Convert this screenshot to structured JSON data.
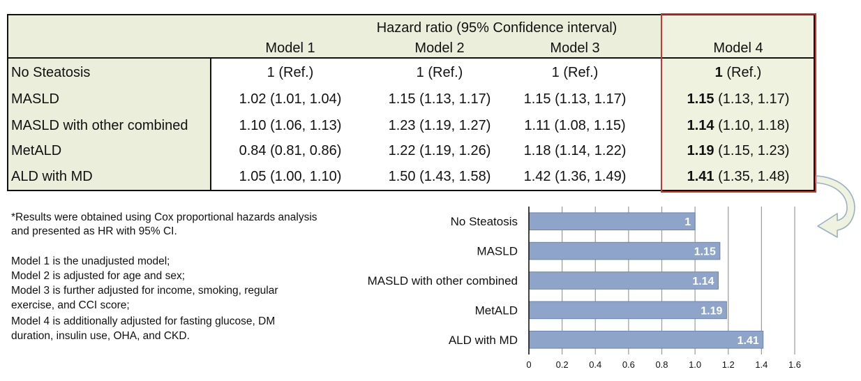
{
  "table": {
    "header_title": "Hazard ratio (95% Confidence interval)",
    "columns": [
      "Model 1",
      "Model 2",
      "Model 3",
      "Model 4"
    ],
    "rows": [
      {
        "label": "No Steatosis",
        "m1": "1 (Ref.)",
        "m2": "1 (Ref.)",
        "m3": "1 (Ref.)",
        "m4_bold": "1",
        "m4_ci": " (Ref.)"
      },
      {
        "label": "MASLD",
        "m1": "1.02 (1.01, 1.04)",
        "m2": "1.15 (1.13, 1.17)",
        "m3": "1.15 (1.13, 1.17)",
        "m4_bold": "1.15",
        "m4_ci": " (1.13, 1.17)"
      },
      {
        "label": "MASLD with other combined",
        "m1": "1.10 (1.06, 1.13)",
        "m2": "1.23 (1.19, 1.27)",
        "m3": "1.11 (1.08, 1.15)",
        "m4_bold": "1.14",
        "m4_ci": " (1.10, 1.18)"
      },
      {
        "label": "MetALD",
        "m1": "0.84 (0.81, 0.86)",
        "m2": "1.22 (1.19, 1.26)",
        "m3": "1.18 (1.14, 1.22)",
        "m4_bold": "1.19",
        "m4_ci": " (1.15, 1.23)"
      },
      {
        "label": "ALD with MD",
        "m1": "1.05 (1.00, 1.10)",
        "m2": "1.50 (1.43, 1.58)",
        "m3": "1.42 (1.36, 1.49)",
        "m4_bold": "1.41",
        "m4_ci": " (1.35, 1.48)"
      }
    ],
    "highlight_color": "#d0342c"
  },
  "notes": {
    "line1": "*Results were obtained using Cox proportional hazards analysis",
    "line2": "and presented as HR with 95% CI.",
    "model1": "Model 1 is the unadjusted model;",
    "model2": "Model 2 is adjusted for age and sex;",
    "model3a": "Model 3 is further adjusted for income, smoking, regular",
    "model3b": "exercise, and CCI score;",
    "model4a": "Model 4 is additionally adjusted for fasting glucose, DM",
    "model4b": "duration, insulin use, OHA, and CKD."
  },
  "chart_data": {
    "type": "bar",
    "orientation": "horizontal",
    "categories": [
      "No Steatosis",
      "MASLD",
      "MASLD with other combined",
      "MetALD",
      "ALD with MD"
    ],
    "values": [
      1,
      1.15,
      1.14,
      1.19,
      1.41
    ],
    "value_labels": [
      "1",
      "1.15",
      "1.14",
      "1.19",
      "1.41"
    ],
    "xlim": [
      0,
      1.6
    ],
    "xticks": [
      "0",
      "0.2",
      "0.4",
      "0.6",
      "0.8",
      "1.0",
      "1.2",
      "1.4",
      "1.6"
    ],
    "grid": "vertical",
    "bar_color": "#8ea4c9",
    "bar_edge_color": "#6a84b3"
  }
}
